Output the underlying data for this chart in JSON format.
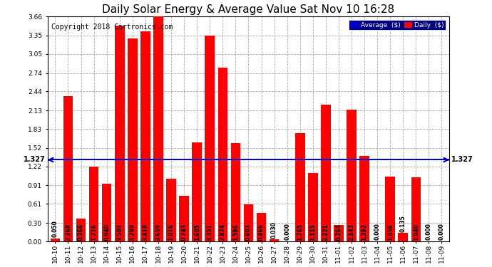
{
  "title": "Daily Solar Energy & Average Value Sat Nov 10 16:28",
  "copyright": "Copyright 2018 Cartronics.com",
  "categories": [
    "10-10",
    "10-11",
    "10-12",
    "10-13",
    "10-14",
    "10-15",
    "10-16",
    "10-17",
    "10-18",
    "10-19",
    "10-20",
    "10-21",
    "10-22",
    "10-23",
    "10-24",
    "10-25",
    "10-26",
    "10-27",
    "10-28",
    "10-29",
    "10-30",
    "10-31",
    "11-01",
    "11-02",
    "11-03",
    "11-04",
    "11-05",
    "11-06",
    "11-07",
    "11-08",
    "11-09"
  ],
  "values": [
    0.05,
    2.368,
    0.366,
    1.216,
    0.94,
    3.509,
    3.299,
    3.418,
    3.659,
    1.016,
    0.743,
    1.605,
    3.351,
    2.824,
    1.596,
    0.603,
    0.466,
    0.03,
    0.0,
    1.765,
    1.115,
    2.221,
    0.264,
    2.143,
    1.392,
    0.0,
    1.056,
    0.135,
    1.04,
    0.0,
    0.0
  ],
  "average": 1.327,
  "bar_color": "#ff0000",
  "average_color": "#0000cc",
  "ylim": [
    0.0,
    3.66
  ],
  "yticks": [
    0.0,
    0.3,
    0.61,
    0.91,
    1.22,
    1.52,
    1.83,
    2.13,
    2.44,
    2.74,
    3.05,
    3.35,
    3.66
  ],
  "grid_color": "#aaaaaa",
  "background_color": "#ffffff",
  "legend_avg_color": "#0000cc",
  "legend_daily_color": "#ff0000",
  "title_fontsize": 11,
  "copyright_fontsize": 7,
  "tick_fontsize": 6.5,
  "value_fontsize": 5.5
}
